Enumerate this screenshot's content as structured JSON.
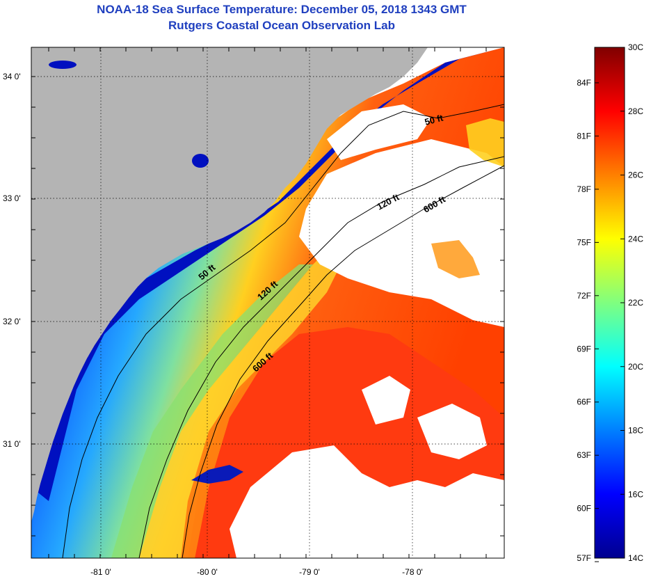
{
  "header": {
    "title": "NOAA-18 Sea Surface Temperature:  December 05, 2018 1343 GMT",
    "subtitle": "Rutgers Coastal Ocean Observation Lab"
  },
  "map": {
    "lat_ticks": [
      "34 0'",
      "33 0'",
      "32 0'",
      "31 0'"
    ],
    "lon_ticks": [
      "-81 0'",
      "-80 0'",
      "-79 0'",
      "-78 0'"
    ],
    "contour_labels": [
      "50 ft",
      "120 ft",
      "600 ft",
      "50 ft",
      "120 ft",
      "600 ft"
    ],
    "colors": {
      "land": "#b4b4b4",
      "cloud": "#ffffff",
      "frame": "#000000"
    }
  },
  "colorbar": {
    "fahrenheit_labels": [
      "84F",
      "81F",
      "78F",
      "75F",
      "72F",
      "69F",
      "66F",
      "63F",
      "60F",
      "57F"
    ],
    "celsius_labels": [
      "30C",
      "28C",
      "26C",
      "24C",
      "22C",
      "20C",
      "18C",
      "16C",
      "14C"
    ],
    "min_c": 14,
    "max_c": 30,
    "colormap": "jet"
  }
}
